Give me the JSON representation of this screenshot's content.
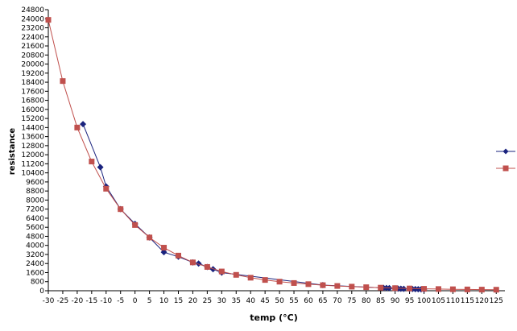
{
  "chart_data": {
    "type": "line",
    "xlabel": "temp (°C)",
    "ylabel": "resistance",
    "xlim": [
      -30,
      128
    ],
    "ylim": [
      0,
      24800
    ],
    "x_ticks": [
      -30,
      -25,
      -20,
      -15,
      -10,
      -5,
      0,
      5,
      10,
      15,
      20,
      25,
      30,
      35,
      40,
      45,
      50,
      55,
      60,
      65,
      70,
      75,
      80,
      85,
      90,
      95,
      100,
      105,
      110,
      115,
      120,
      125
    ],
    "y_ticks": [
      0,
      800,
      1600,
      2400,
      3200,
      4000,
      4800,
      5600,
      6400,
      7200,
      8000,
      8800,
      9600,
      10400,
      11200,
      12000,
      12800,
      13600,
      14400,
      15200,
      16000,
      16800,
      17600,
      18400,
      19200,
      20000,
      20800,
      21600,
      22400,
      23200,
      24000,
      24800
    ],
    "grid": false,
    "legend": "right",
    "series": [
      {
        "color": "#1a237e",
        "marker": "diamond",
        "x": [
          -18,
          -12,
          -10,
          -5,
          0,
          5,
          10,
          15,
          20,
          22,
          25,
          27,
          30,
          65,
          86,
          87,
          88,
          90,
          91,
          92,
          93,
          95,
          96,
          97,
          98,
          99,
          100
        ],
        "y": [
          14700,
          10900,
          9200,
          7200,
          5900,
          4700,
          3400,
          3000,
          2500,
          2400,
          2100,
          1900,
          1600,
          500,
          250,
          240,
          230,
          200,
          190,
          180,
          170,
          160,
          150,
          140,
          130,
          120,
          110
        ]
      },
      {
        "color": "#c0504d",
        "marker": "square",
        "x": [
          -30,
          -25,
          -20,
          -15,
          -10,
          -5,
          0,
          5,
          10,
          15,
          20,
          25,
          30,
          35,
          40,
          45,
          50,
          55,
          60,
          65,
          70,
          75,
          80,
          85,
          90,
          95,
          100,
          105,
          110,
          115,
          120,
          125
        ],
        "y": [
          23900,
          18500,
          14400,
          11400,
          9000,
          7200,
          5800,
          4700,
          3800,
          3100,
          2500,
          2100,
          1700,
          1400,
          1150,
          950,
          800,
          680,
          580,
          490,
          420,
          360,
          310,
          270,
          230,
          200,
          170,
          150,
          130,
          115,
          100,
          90
        ]
      }
    ]
  }
}
